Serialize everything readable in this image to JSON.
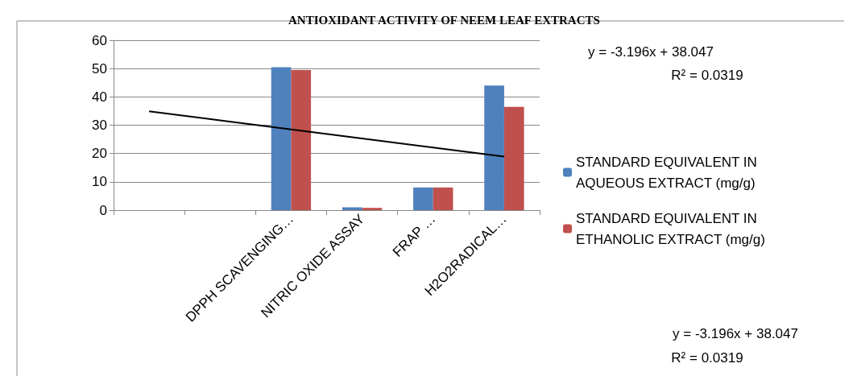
{
  "chart_data": {
    "type": "bar",
    "title": "ANTIOXIDANT ACTIVITY OF NEEM LEAF EXTRACTS",
    "categories": [
      null,
      null,
      "DPPH SCAVENGING…",
      "NITRIC OXIDE ASSAY",
      "FRAP …",
      "H2O2RADICAL…"
    ],
    "series": [
      {
        "name": "STANDARD EQUIVALENT IN AQUEOUS EXTRACT (mg/g)",
        "color": "#4f81bd",
        "values": [
          null,
          null,
          50.5,
          1,
          8,
          44
        ]
      },
      {
        "name": "STANDARD EQUIVALENT IN ETHANOLIC EXTRACT (mg/g)",
        "color": "#c0504d",
        "values": [
          null,
          null,
          49.5,
          0.8,
          8,
          36.5
        ]
      },
      {
        "type": "line",
        "color": "#000000",
        "marker": "none",
        "values": [
          34.9,
          31.7,
          28.5,
          25.3,
          22.1,
          18.9
        ]
      }
    ],
    "ylim": [
      0,
      60
    ],
    "yticks": [
      0,
      10,
      20,
      30,
      40,
      50,
      60
    ],
    "grid": "y",
    "legend": "right",
    "annotations": [
      "y = -3.196x + 38.047",
      "R² = 0.0319",
      "y = -3.196x + 38.047",
      "R² = 0.0319"
    ]
  }
}
